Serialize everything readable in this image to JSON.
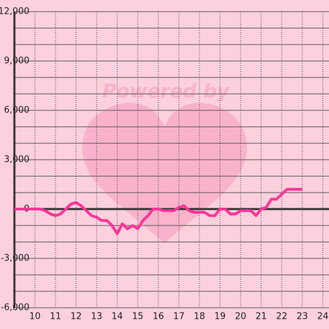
{
  "chart_data": {
    "type": "line",
    "watermark": "Powered by",
    "x": [
      9,
      9.5,
      10,
      10.25,
      10.5,
      10.75,
      11,
      11.25,
      11.5,
      11.75,
      12,
      12.25,
      12.5,
      12.75,
      13,
      13.25,
      13.5,
      13.75,
      14,
      14.25,
      14.5,
      14.75,
      15,
      15.25,
      15.5,
      15.75,
      16,
      16.25,
      16.5,
      16.75,
      17,
      17.25,
      17.5,
      17.75,
      18,
      18.25,
      18.5,
      18.75,
      19,
      19.25,
      19.5,
      19.75,
      20,
      20.25,
      20.5,
      20.75,
      21,
      21.25,
      21.5,
      21.75,
      22,
      22.25,
      22.5,
      22.75,
      23
    ],
    "values": [
      0,
      0,
      0,
      0,
      -100,
      -300,
      -400,
      -300,
      0,
      300,
      400,
      200,
      -100,
      -400,
      -500,
      -700,
      -700,
      -1000,
      -1500,
      -900,
      -1200,
      -1000,
      -1200,
      -700,
      -400,
      0,
      0,
      -100,
      -100,
      -100,
      100,
      200,
      -100,
      -200,
      -200,
      -200,
      -400,
      -400,
      0,
      0,
      -300,
      -300,
      -100,
      -100,
      -100,
      -400,
      0,
      100,
      600,
      600,
      900,
      1200,
      1200,
      1200,
      1200
    ],
    "color": "#ff3399",
    "xlim": [
      9,
      24.3
    ],
    "xticks": [
      10,
      11,
      12,
      13,
      14,
      15,
      16,
      17,
      18,
      19,
      20,
      21,
      22,
      23,
      24
    ],
    "ylim": [
      -6000,
      12000
    ],
    "yticks": [
      {
        "value": 12000,
        "label": "12,000"
      },
      {
        "value": 9000,
        "label": "9,000"
      },
      {
        "value": 6000,
        "label": "6,000"
      },
      {
        "value": 3000,
        "label": "3,000"
      },
      0,
      {
        "value": -3000,
        "label": "-3,000"
      },
      {
        "value": -6000,
        "label": "-6,000"
      }
    ],
    "minor_yticks": [
      11000,
      10000,
      8000,
      7000,
      5000,
      4000,
      2000,
      1000,
      -1000,
      -2000,
      -4000,
      -5000
    ],
    "grid": true
  }
}
